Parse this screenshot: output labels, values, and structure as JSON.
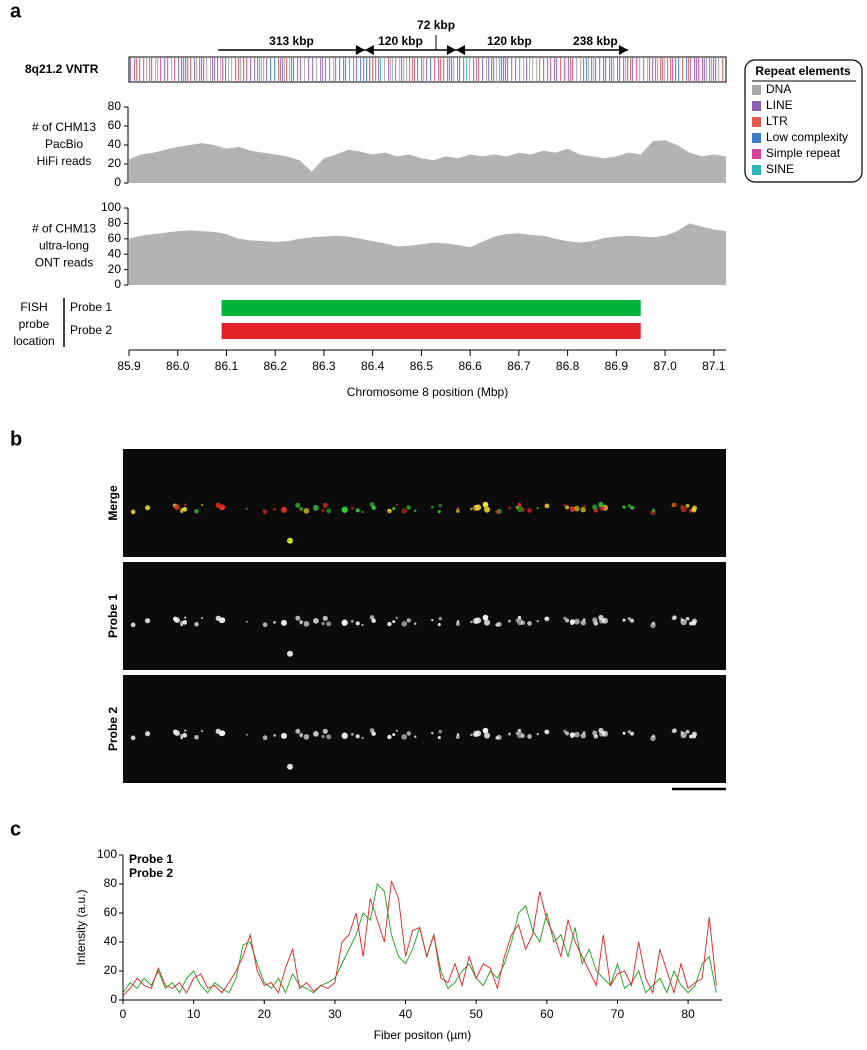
{
  "panel_labels": [
    "a",
    "b",
    "c"
  ],
  "vntr": {
    "label": "8q21.2 VNTR",
    "segments": [
      {
        "label": "313 kbp",
        "start": 86.083,
        "end": 86.384,
        "direction": "right"
      },
      {
        "label": "120 kbp",
        "start": 86.384,
        "end": 86.53,
        "direction": "left"
      },
      {
        "label": "72 kbp",
        "start": 86.53,
        "end": 86.571,
        "direction": "right"
      },
      {
        "label": "120 kbp",
        "start": 86.571,
        "end": 86.79,
        "direction": "left"
      },
      {
        "label": "238 kbp",
        "start": 86.79,
        "end": 86.924,
        "direction": "right"
      }
    ]
  },
  "repeat_legend": {
    "title": "Repeat elements",
    "items": [
      {
        "name": "DNA",
        "color": "#a6a6a6"
      },
      {
        "name": "LINE",
        "color": "#8a5fb0"
      },
      {
        "name": "LTR",
        "color": "#e05a50"
      },
      {
        "name": "Low complexity",
        "color": "#3a7cc8"
      },
      {
        "name": "Simple repeat",
        "color": "#d6449a"
      },
      {
        "name": "SINE",
        "color": "#2fb5b8"
      }
    ]
  },
  "images": {
    "panels": [
      {
        "label": "Merge",
        "color": "#000000"
      },
      {
        "label": "Probe 1",
        "color": "#1a9e1a"
      },
      {
        "label": "Probe 2",
        "color": "#e02020"
      }
    ]
  },
  "chart_data": [
    {
      "type": "area",
      "ylabel": [
        "# of CHM13",
        "PacBio",
        "HiFi reads"
      ],
      "color": "#b3b3b3",
      "xlim": [
        85.9,
        87.125
      ],
      "ylim": [
        0,
        80
      ],
      "yticks": [
        0,
        20,
        40,
        60,
        80
      ],
      "x": [
        85.9,
        85.925,
        85.95,
        85.975,
        86.0,
        86.025,
        86.05,
        86.075,
        86.1,
        86.125,
        86.15,
        86.175,
        86.2,
        86.225,
        86.25,
        86.275,
        86.3,
        86.325,
        86.35,
        86.375,
        86.4,
        86.425,
        86.45,
        86.475,
        86.5,
        86.525,
        86.55,
        86.575,
        86.6,
        86.625,
        86.65,
        86.675,
        86.7,
        86.725,
        86.75,
        86.775,
        86.8,
        86.825,
        86.85,
        86.875,
        86.9,
        86.925,
        86.95,
        86.975,
        87.0,
        87.025,
        87.05,
        87.075,
        87.1,
        87.125
      ],
      "values": [
        25,
        30,
        32,
        35,
        38,
        40,
        42,
        40,
        36,
        38,
        34,
        32,
        30,
        28,
        24,
        12,
        26,
        30,
        35,
        33,
        30,
        32,
        28,
        30,
        26,
        24,
        28,
        26,
        30,
        28,
        30,
        28,
        32,
        30,
        34,
        32,
        36,
        30,
        28,
        26,
        28,
        32,
        30,
        44,
        45,
        40,
        32,
        28,
        30,
        28
      ]
    },
    {
      "type": "area",
      "ylabel": [
        "# of CHM13",
        "ultra-long",
        "ONT reads"
      ],
      "color": "#b3b3b3",
      "xlim": [
        85.9,
        87.125
      ],
      "ylim": [
        0,
        100
      ],
      "yticks": [
        0,
        20,
        40,
        60,
        80,
        100
      ],
      "x": [
        85.9,
        85.925,
        85.95,
        85.975,
        86.0,
        86.025,
        86.05,
        86.075,
        86.1,
        86.125,
        86.15,
        86.175,
        86.2,
        86.225,
        86.25,
        86.275,
        86.3,
        86.325,
        86.35,
        86.375,
        86.4,
        86.425,
        86.45,
        86.475,
        86.5,
        86.525,
        86.55,
        86.575,
        86.6,
        86.625,
        86.65,
        86.675,
        86.7,
        86.725,
        86.75,
        86.775,
        86.8,
        86.825,
        86.85,
        86.875,
        86.9,
        86.925,
        86.95,
        86.975,
        87.0,
        87.025,
        87.05,
        87.075,
        87.1,
        87.125
      ],
      "values": [
        60,
        64,
        66,
        68,
        70,
        71,
        70,
        69,
        66,
        60,
        58,
        57,
        56,
        57,
        60,
        62,
        63,
        64,
        63,
        60,
        57,
        54,
        50,
        51,
        53,
        55,
        54,
        52,
        49,
        56,
        63,
        66,
        67,
        65,
        64,
        60,
        57,
        55,
        57,
        61,
        63,
        64,
        63,
        62,
        64,
        70,
        80,
        76,
        72,
        70
      ]
    },
    {
      "type": "range",
      "ylabel": [
        "FISH",
        "probe",
        "location"
      ],
      "xlabel": "Chromosome 8 position (Mbp)",
      "xlim": [
        85.9,
        87.125
      ],
      "xticks": [
        85.9,
        {
          "value": 86,
          "label": "86.0"
        },
        86.1,
        86.2,
        86.3,
        86.4,
        86.5,
        86.6,
        86.7,
        86.8,
        86.9,
        {
          "value": 87,
          "label": "87.0"
        },
        87.1
      ],
      "series": [
        {
          "name": "Probe 1",
          "color": "#00b23c",
          "start": 86.09,
          "end": 86.95
        },
        {
          "name": "Probe 2",
          "color": "#e3232a",
          "start": 86.09,
          "end": 86.95
        }
      ]
    },
    {
      "type": "line",
      "xlabel": "Fiber positon (µm)",
      "ylabel": "Intensity (a.u.)",
      "xlim": [
        0,
        84.8
      ],
      "ylim": [
        0,
        100
      ],
      "xticks": [
        0,
        10,
        20,
        30,
        40,
        50,
        60,
        70,
        80
      ],
      "yticks": [
        0,
        20,
        40,
        60,
        80,
        100
      ],
      "x": [
        0,
        1,
        2,
        3,
        4,
        5,
        6,
        7,
        8,
        9,
        10,
        11,
        12,
        13,
        14,
        15,
        16,
        17,
        18,
        19,
        20,
        21,
        22,
        23,
        24,
        25,
        26,
        27,
        28,
        29,
        30,
        31,
        32,
        33,
        34,
        35,
        36,
        37,
        38,
        39,
        40,
        41,
        42,
        43,
        44,
        45,
        46,
        47,
        48,
        49,
        50,
        51,
        52,
        53,
        54,
        55,
        56,
        57,
        58,
        59,
        60,
        61,
        62,
        63,
        64,
        65,
        66,
        67,
        68,
        69,
        70,
        71,
        72,
        73,
        74,
        75,
        76,
        77,
        78,
        79,
        80,
        81,
        82,
        83,
        84
      ],
      "series": [
        {
          "name": "Probe 1",
          "color": "#1aa31a",
          "values": [
            5,
            12,
            8,
            15,
            10,
            20,
            8,
            12,
            5,
            15,
            20,
            10,
            5,
            12,
            8,
            5,
            15,
            38,
            40,
            25,
            12,
            8,
            15,
            5,
            18,
            10,
            8,
            5,
            10,
            12,
            15,
            25,
            35,
            45,
            60,
            55,
            80,
            75,
            45,
            30,
            25,
            35,
            50,
            30,
            45,
            20,
            8,
            12,
            20,
            25,
            15,
            10,
            20,
            15,
            25,
            40,
            60,
            65,
            48,
            40,
            60,
            40,
            45,
            30,
            50,
            25,
            35,
            20,
            15,
            10,
            25,
            8,
            12,
            20,
            5,
            10,
            15,
            5,
            20,
            10,
            5,
            10,
            25,
            30,
            5
          ]
        },
        {
          "name": "Probe 2",
          "color": "#e02020",
          "values": [
            3,
            8,
            15,
            10,
            8,
            22,
            10,
            8,
            12,
            5,
            15,
            18,
            8,
            10,
            5,
            12,
            20,
            30,
            45,
            20,
            10,
            12,
            5,
            22,
            35,
            8,
            12,
            6,
            10,
            8,
            12,
            40,
            45,
            60,
            30,
            70,
            55,
            40,
            82,
            70,
            30,
            48,
            50,
            30,
            45,
            15,
            12,
            25,
            10,
            30,
            15,
            25,
            22,
            8,
            30,
            45,
            52,
            35,
            45,
            75,
            55,
            45,
            30,
            55,
            40,
            30,
            20,
            10,
            45,
            10,
            18,
            20,
            10,
            40,
            15,
            5,
            35,
            20,
            5,
            25,
            8,
            12,
            15,
            57,
            10
          ]
        }
      ]
    }
  ]
}
